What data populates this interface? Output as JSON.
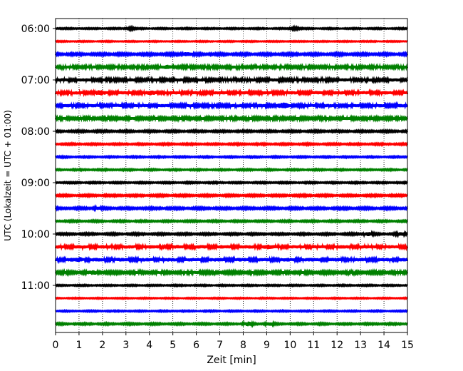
{
  "chart_data": {
    "type": "line",
    "xlabel": "Zeit  [min]",
    "ylabel": "UTC (Lokalzeit = UTC + 01:00)",
    "xlim": [
      0,
      15
    ],
    "x_ticks": [
      "0",
      "1",
      "2",
      "3",
      "4",
      "5",
      "6",
      "7",
      "8",
      "9",
      "10",
      "11",
      "12",
      "13",
      "14",
      "15"
    ],
    "y_tick_labels": [
      "06:00",
      "07:00",
      "08:00",
      "09:00",
      "10:00",
      "11:00"
    ],
    "grid": "vertical-dotted",
    "trace_interval_minutes": 15,
    "colors": [
      "#000000",
      "#ff0000",
      "#0000ff",
      "#008000"
    ],
    "traces": [
      {
        "start": "06:00",
        "color": "#000000",
        "amplitude": 0.7,
        "bursts": [
          {
            "t": 3.2,
            "a": 1.0
          },
          {
            "t": 10.2,
            "a": 1.2
          }
        ]
      },
      {
        "start": "06:15",
        "color": "#ff0000",
        "amplitude": 0.6,
        "bursts": []
      },
      {
        "start": "06:30",
        "color": "#0000ff",
        "amplitude": 1.2,
        "bursts": [
          {
            "t": 5.6,
            "a": 2.5
          }
        ]
      },
      {
        "start": "06:45",
        "color": "#008000",
        "amplitude": 1.6,
        "bursts": [
          {
            "t": 4.8,
            "a": 1.5
          }
        ]
      },
      {
        "start": "07:00",
        "color": "#000000",
        "amplitude": 1.7,
        "bursts": []
      },
      {
        "start": "07:15",
        "color": "#ff0000",
        "amplitude": 1.8,
        "bursts": [
          {
            "t": 1.9,
            "a": 1.8
          },
          {
            "t": 4.1,
            "a": 1.5
          }
        ]
      },
      {
        "start": "07:30",
        "color": "#0000ff",
        "amplitude": 1.8,
        "bursts": [
          {
            "t": 9.7,
            "a": 2.5
          }
        ]
      },
      {
        "start": "07:45",
        "color": "#008000",
        "amplitude": 1.6,
        "bursts": []
      },
      {
        "start": "08:00",
        "color": "#000000",
        "amplitude": 1.0,
        "bursts": []
      },
      {
        "start": "08:15",
        "color": "#ff0000",
        "amplitude": 0.9,
        "bursts": []
      },
      {
        "start": "08:30",
        "color": "#0000ff",
        "amplitude": 0.8,
        "bursts": []
      },
      {
        "start": "08:45",
        "color": "#008000",
        "amplitude": 0.8,
        "bursts": []
      },
      {
        "start": "09:00",
        "color": "#000000",
        "amplitude": 0.8,
        "bursts": []
      },
      {
        "start": "09:15",
        "color": "#ff0000",
        "amplitude": 1.0,
        "bursts": []
      },
      {
        "start": "09:30",
        "color": "#0000ff",
        "amplitude": 1.1,
        "bursts": [
          {
            "t": 1.8,
            "a": 1.2
          }
        ]
      },
      {
        "start": "09:45",
        "color": "#008000",
        "amplitude": 0.9,
        "bursts": []
      },
      {
        "start": "10:00",
        "color": "#000000",
        "amplitude": 1.0,
        "bursts": [
          {
            "t": 13.3,
            "a": 2.0
          },
          {
            "t": 14.7,
            "a": 1.8
          }
        ]
      },
      {
        "start": "10:15",
        "color": "#ff0000",
        "amplitude": 1.9,
        "bursts": [
          {
            "t": 9.0,
            "a": 1.5
          }
        ]
      },
      {
        "start": "10:30",
        "color": "#0000ff",
        "amplitude": 2.0,
        "bursts": [
          {
            "t": 1.0,
            "a": 1.5
          }
        ]
      },
      {
        "start": "10:45",
        "color": "#008000",
        "amplitude": 1.5,
        "bursts": [
          {
            "t": 1.6,
            "a": 1.6
          },
          {
            "t": 6.0,
            "a": 1.2
          }
        ]
      },
      {
        "start": "11:00",
        "color": "#000000",
        "amplitude": 0.7,
        "bursts": []
      },
      {
        "start": "11:15",
        "color": "#ff0000",
        "amplitude": 0.6,
        "bursts": []
      },
      {
        "start": "11:30",
        "color": "#0000ff",
        "amplitude": 0.7,
        "bursts": []
      },
      {
        "start": "11:45",
        "color": "#008000",
        "amplitude": 0.9,
        "bursts": [
          {
            "t": 8.2,
            "a": 2.2
          },
          {
            "t": 9.1,
            "a": 1.8
          }
        ]
      }
    ]
  }
}
